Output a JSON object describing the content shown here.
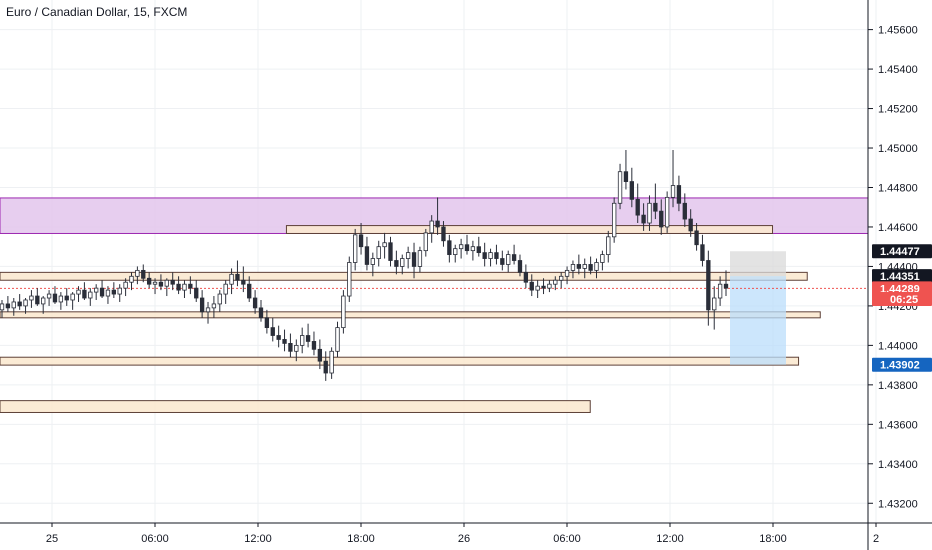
{
  "title": "Euro / Canadian Dollar, 15, FXCM",
  "colors": {
    "up": "#26a69a",
    "down": "#ef5350",
    "candle": "#2a2e39",
    "grid": "#eef0f3",
    "axis_line": "#131722",
    "resistance_zone": "#e3c5ec",
    "resistance_border": "#9c27b0",
    "level_fill": "#fbe9d0",
    "level_border": "#5d4037",
    "target_zone": "#bbdefb",
    "stop_zone": "#d9d9d9",
    "current_line": "#ef5350"
  },
  "chart_data": {
    "type": "candlestick",
    "symbol": "Euro / Canadian Dollar",
    "timeframe": "15",
    "source": "FXCM",
    "price_axis": {
      "ticks": [
        "1.45600",
        "1.45400",
        "1.45200",
        "1.45000",
        "1.44800",
        "1.44600",
        "1.44400",
        "1.44200",
        "1.44000",
        "1.43800",
        "1.43600",
        "1.43400",
        "1.43200"
      ],
      "range": [
        1.431,
        1.4575
      ]
    },
    "time_axis": {
      "ticks": [
        "25",
        "06:00",
        "12:00",
        "18:00",
        "26",
        "06:00",
        "12:00",
        "18:00",
        "2"
      ]
    },
    "price_labels": [
      {
        "text": "1.44477",
        "value": 1.44477,
        "color": "#131722"
      },
      {
        "text": "1.44351",
        "value": 1.44351,
        "color": "#131722"
      },
      {
        "text": "1.44289",
        "value": 1.44289,
        "color": "#ef5350"
      },
      {
        "text": "06:25",
        "value": 1.44235,
        "color": "#ef5350"
      },
      {
        "text": "1.43902",
        "value": 1.43902,
        "color": "#1565c0"
      }
    ],
    "current_price": 1.44289,
    "zones": [
      {
        "kind": "resistance",
        "from": 1.44567,
        "to": 1.44747,
        "x_start": 0,
        "x_end": 1
      },
      {
        "kind": "level",
        "from": 1.44567,
        "to": 1.44607,
        "x_start": 0.33,
        "x_end": 0.89
      },
      {
        "kind": "level",
        "from": 1.4433,
        "to": 1.4437,
        "x_start": 0,
        "x_end": 0.93
      },
      {
        "kind": "level",
        "from": 1.4414,
        "to": 1.4417,
        "x_start": 0,
        "x_end": 0.945
      },
      {
        "kind": "level",
        "from": 1.439,
        "to": 1.4394,
        "x_start": 0,
        "x_end": 0.92
      },
      {
        "kind": "level",
        "from": 1.4366,
        "to": 1.4372,
        "x_start": 0,
        "x_end": 0.68
      }
    ],
    "position": {
      "entry": 1.44351,
      "stop": 1.44477,
      "target": 1.43902
    },
    "candles": [
      [
        1.4418,
        1.4423,
        1.4414,
        1.4421
      ],
      [
        1.4421,
        1.4425,
        1.4417,
        1.4419
      ],
      [
        1.4419,
        1.4424,
        1.4415,
        1.4422
      ],
      [
        1.4422,
        1.4426,
        1.4418,
        1.442
      ],
      [
        1.442,
        1.4424,
        1.4416,
        1.4423
      ],
      [
        1.4423,
        1.4428,
        1.4419,
        1.4425
      ],
      [
        1.4425,
        1.4429,
        1.442,
        1.4421
      ],
      [
        1.4421,
        1.4425,
        1.4416,
        1.4424
      ],
      [
        1.4424,
        1.4428,
        1.442,
        1.4426
      ],
      [
        1.4426,
        1.443,
        1.4421,
        1.4422
      ],
      [
        1.4422,
        1.4427,
        1.4418,
        1.4425
      ],
      [
        1.4425,
        1.4429,
        1.442,
        1.4423
      ],
      [
        1.4423,
        1.4427,
        1.4418,
        1.4426
      ],
      [
        1.4426,
        1.443,
        1.4422,
        1.4428
      ],
      [
        1.4428,
        1.4432,
        1.4423,
        1.4424
      ],
      [
        1.4424,
        1.4429,
        1.442,
        1.4427
      ],
      [
        1.4427,
        1.4431,
        1.4423,
        1.4429
      ],
      [
        1.4429,
        1.4433,
        1.4424,
        1.4425
      ],
      [
        1.4425,
        1.443,
        1.4421,
        1.4428
      ],
      [
        1.4428,
        1.4432,
        1.4424,
        1.4426
      ],
      [
        1.4426,
        1.4431,
        1.4422,
        1.4429
      ],
      [
        1.4429,
        1.4434,
        1.4425,
        1.4432
      ],
      [
        1.4432,
        1.4437,
        1.4428,
        1.4435
      ],
      [
        1.4435,
        1.444,
        1.4431,
        1.4438
      ],
      [
        1.4438,
        1.4441,
        1.4432,
        1.4434
      ],
      [
        1.4434,
        1.4437,
        1.4429,
        1.4431
      ],
      [
        1.4431,
        1.4434,
        1.4426,
        1.4432
      ],
      [
        1.4432,
        1.4436,
        1.4428,
        1.443
      ],
      [
        1.443,
        1.4434,
        1.4425,
        1.4433
      ],
      [
        1.4433,
        1.4437,
        1.4428,
        1.4431
      ],
      [
        1.4431,
        1.4435,
        1.4426,
        1.4428
      ],
      [
        1.4428,
        1.4433,
        1.4424,
        1.4431
      ],
      [
        1.4431,
        1.4435,
        1.4426,
        1.4429
      ],
      [
        1.4429,
        1.4433,
        1.4422,
        1.4424
      ],
      [
        1.4424,
        1.4428,
        1.4414,
        1.4417
      ],
      [
        1.4417,
        1.4422,
        1.4411,
        1.4419
      ],
      [
        1.4419,
        1.4425,
        1.4414,
        1.4421
      ],
      [
        1.4421,
        1.4428,
        1.4417,
        1.4426
      ],
      [
        1.4426,
        1.4433,
        1.4421,
        1.4431
      ],
      [
        1.4431,
        1.4439,
        1.4426,
        1.4436
      ],
      [
        1.4436,
        1.4443,
        1.443,
        1.4433
      ],
      [
        1.4433,
        1.444,
        1.4427,
        1.4431
      ],
      [
        1.4431,
        1.4435,
        1.4422,
        1.4424
      ],
      [
        1.4424,
        1.4428,
        1.4416,
        1.4419
      ],
      [
        1.4419,
        1.4423,
        1.4412,
        1.4414
      ],
      [
        1.4414,
        1.4418,
        1.4406,
        1.4409
      ],
      [
        1.4409,
        1.4414,
        1.4402,
        1.4405
      ],
      [
        1.4405,
        1.441,
        1.4399,
        1.4403
      ],
      [
        1.4403,
        1.4408,
        1.4397,
        1.4401
      ],
      [
        1.4401,
        1.4406,
        1.4394,
        1.4397
      ],
      [
        1.4397,
        1.4403,
        1.4392,
        1.44
      ],
      [
        1.44,
        1.4409,
        1.4396,
        1.4405
      ],
      [
        1.4405,
        1.4411,
        1.4399,
        1.4402
      ],
      [
        1.4402,
        1.4407,
        1.4395,
        1.4398
      ],
      [
        1.4398,
        1.4403,
        1.4388,
        1.4392
      ],
      [
        1.4392,
        1.4397,
        1.4382,
        1.4386
      ],
      [
        1.4386,
        1.4399,
        1.4383,
        1.4397
      ],
      [
        1.4397,
        1.4412,
        1.4394,
        1.4409
      ],
      [
        1.4409,
        1.4428,
        1.4406,
        1.4425
      ],
      [
        1.4425,
        1.4445,
        1.4422,
        1.4442
      ],
      [
        1.4442,
        1.4459,
        1.4438,
        1.4456
      ],
      [
        1.4456,
        1.4462,
        1.4446,
        1.445
      ],
      [
        1.445,
        1.4455,
        1.4438,
        1.4441
      ],
      [
        1.4441,
        1.4447,
        1.4435,
        1.4444
      ],
      [
        1.4444,
        1.4453,
        1.444,
        1.445
      ],
      [
        1.445,
        1.4457,
        1.4444,
        1.4452
      ],
      [
        1.4452,
        1.4455,
        1.444,
        1.4443
      ],
      [
        1.4443,
        1.4448,
        1.4436,
        1.444
      ],
      [
        1.444,
        1.4446,
        1.4436,
        1.4444
      ],
      [
        1.4444,
        1.445,
        1.4439,
        1.4447
      ],
      [
        1.4447,
        1.4452,
        1.4434,
        1.444
      ],
      [
        1.444,
        1.445,
        1.4437,
        1.4448
      ],
      [
        1.4448,
        1.4459,
        1.4445,
        1.4457
      ],
      [
        1.4457,
        1.4466,
        1.4452,
        1.4463
      ],
      [
        1.4463,
        1.4475,
        1.4456,
        1.446
      ],
      [
        1.446,
        1.4463,
        1.445,
        1.4453
      ],
      [
        1.4453,
        1.4456,
        1.4442,
        1.4446
      ],
      [
        1.4446,
        1.4451,
        1.4442,
        1.4449
      ],
      [
        1.4449,
        1.4454,
        1.4444,
        1.4451
      ],
      [
        1.4451,
        1.4456,
        1.4446,
        1.4448
      ],
      [
        1.4448,
        1.4453,
        1.4443,
        1.445
      ],
      [
        1.445,
        1.4455,
        1.4445,
        1.4447
      ],
      [
        1.4447,
        1.4452,
        1.444,
        1.4444
      ],
      [
        1.4444,
        1.4449,
        1.444,
        1.4447
      ],
      [
        1.4447,
        1.4451,
        1.4441,
        1.4444
      ],
      [
        1.4444,
        1.4448,
        1.4438,
        1.4441
      ],
      [
        1.4441,
        1.4448,
        1.4437,
        1.4446
      ],
      [
        1.4446,
        1.4451,
        1.4441,
        1.4443
      ],
      [
        1.4443,
        1.4446,
        1.4435,
        1.4437
      ],
      [
        1.4437,
        1.4441,
        1.4429,
        1.4432
      ],
      [
        1.4432,
        1.4436,
        1.4425,
        1.4428
      ],
      [
        1.4428,
        1.4433,
        1.4424,
        1.443
      ],
      [
        1.443,
        1.4434,
        1.4426,
        1.4429
      ],
      [
        1.4429,
        1.4433,
        1.4427,
        1.4431
      ],
      [
        1.4431,
        1.4435,
        1.4428,
        1.4433
      ],
      [
        1.4433,
        1.4437,
        1.4429,
        1.4435
      ],
      [
        1.4435,
        1.444,
        1.4431,
        1.4438
      ],
      [
        1.4438,
        1.4443,
        1.4434,
        1.4441
      ],
      [
        1.4441,
        1.4446,
        1.4436,
        1.4439
      ],
      [
        1.4439,
        1.4444,
        1.4434,
        1.4441
      ],
      [
        1.4441,
        1.4445,
        1.4436,
        1.4438
      ],
      [
        1.4438,
        1.4444,
        1.4434,
        1.4442
      ],
      [
        1.4442,
        1.4448,
        1.4438,
        1.4446
      ],
      [
        1.4446,
        1.4458,
        1.4442,
        1.4455
      ],
      [
        1.4455,
        1.4475,
        1.4452,
        1.4472
      ],
      [
        1.4472,
        1.4492,
        1.4469,
        1.4488
      ],
      [
        1.4488,
        1.4499,
        1.4479,
        1.4483
      ],
      [
        1.4483,
        1.449,
        1.447,
        1.4474
      ],
      [
        1.4474,
        1.4482,
        1.4462,
        1.4466
      ],
      [
        1.4466,
        1.4472,
        1.4458,
        1.4462
      ],
      [
        1.4462,
        1.4476,
        1.4458,
        1.4472
      ],
      [
        1.4472,
        1.4482,
        1.4464,
        1.4468
      ],
      [
        1.4468,
        1.4474,
        1.4456,
        1.446
      ],
      [
        1.446,
        1.4478,
        1.4457,
        1.4475
      ],
      [
        1.4475,
        1.4499,
        1.447,
        1.4481
      ],
      [
        1.4481,
        1.4486,
        1.4468,
        1.4472
      ],
      [
        1.4472,
        1.4477,
        1.446,
        1.4464
      ],
      [
        1.4464,
        1.4469,
        1.4455,
        1.4458
      ],
      [
        1.4458,
        1.4462,
        1.4448,
        1.4451
      ],
      [
        1.4451,
        1.4456,
        1.444,
        1.4443
      ],
      [
        1.4443,
        1.4448,
        1.441,
        1.4418
      ],
      [
        1.4418,
        1.443,
        1.4408,
        1.4424
      ],
      [
        1.4424,
        1.4435,
        1.442,
        1.4431
      ],
      [
        1.4431,
        1.4438,
        1.4425,
        1.4429
      ]
    ]
  }
}
